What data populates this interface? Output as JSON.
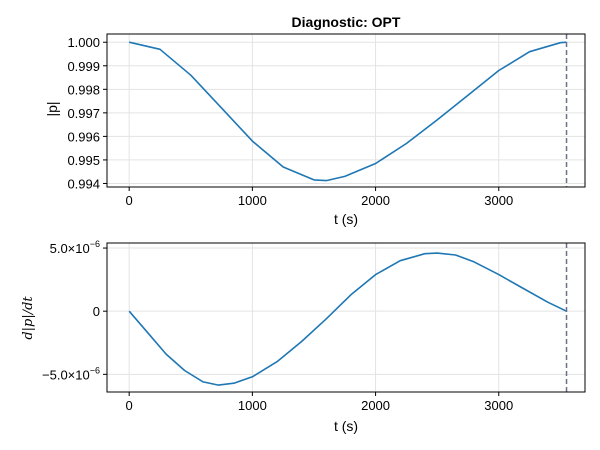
{
  "chart_data": [
    {
      "type": "line",
      "title": "Diagnostic: OPT",
      "xlabel": "t (s)",
      "ylabel": "|p|",
      "xlim": [
        -180,
        3700
      ],
      "ylim": [
        0.99385,
        1.00035
      ],
      "xticks": [
        0,
        1000,
        2000,
        3000
      ],
      "xtick_labels": [
        "0",
        "1000",
        "2000",
        "3000"
      ],
      "yticks": [
        0.994,
        0.995,
        0.996,
        0.997,
        0.998,
        0.999,
        1.0
      ],
      "ytick_labels": [
        "0.994",
        "0.995",
        "0.996",
        "0.997",
        "0.998",
        "0.999",
        "1.000"
      ],
      "grid": true,
      "line_color": "#1f77b4",
      "vline": {
        "x": 3550,
        "color": "#6b7089",
        "style": "dashed"
      },
      "series": [
        {
          "x": [
            0,
            250,
            500,
            750,
            1000,
            1250,
            1500,
            1600,
            1750,
            2000,
            2250,
            2500,
            2750,
            3000,
            3250,
            3500,
            3550
          ],
          "values": [
            1.0,
            0.9997,
            0.9986,
            0.9972,
            0.9958,
            0.9947,
            0.99415,
            0.99412,
            0.9943,
            0.99485,
            0.9957,
            0.9967,
            0.99775,
            0.9988,
            0.9996,
            0.99998,
            1.0
          ]
        }
      ]
    },
    {
      "type": "line",
      "xlabel": "t (s)",
      "ylabel": "d|p|/dt",
      "xlim": [
        -180,
        3700
      ],
      "ylim": [
        -6.4e-06,
        5.4e-06
      ],
      "xticks": [
        0,
        1000,
        2000,
        3000
      ],
      "xtick_labels": [
        "0",
        "1000",
        "2000",
        "3000"
      ],
      "yticks": [
        -5e-06,
        0,
        5e-06
      ],
      "ytick_labels": [
        {
          "mantissa": "−5.0×10",
          "exp": "−6"
        },
        {
          "mantissa": "0",
          "exp": ""
        },
        {
          "mantissa": "5.0×10",
          "exp": "−6"
        }
      ],
      "grid": true,
      "line_color": "#1f77b4",
      "vline": {
        "x": 3550,
        "color": "#6b7089",
        "style": "dashed"
      },
      "series": [
        {
          "x": [
            0,
            150,
            300,
            450,
            600,
            725,
            850,
            1000,
            1200,
            1400,
            1600,
            1800,
            2000,
            2200,
            2400,
            2500,
            2650,
            2800,
            3000,
            3200,
            3400,
            3550
          ],
          "values": [
            0,
            -1.7e-06,
            -3.4e-06,
            -4.7e-06,
            -5.6e-06,
            -5.85e-06,
            -5.7e-06,
            -5.2e-06,
            -4e-06,
            -2.4e-06,
            -6e-07,
            1.3e-06,
            2.9e-06,
            4e-06,
            4.55e-06,
            4.6e-06,
            4.45e-06,
            3.9e-06,
            2.9e-06,
            1.8e-06,
            7e-07,
            0
          ]
        }
      ]
    }
  ]
}
